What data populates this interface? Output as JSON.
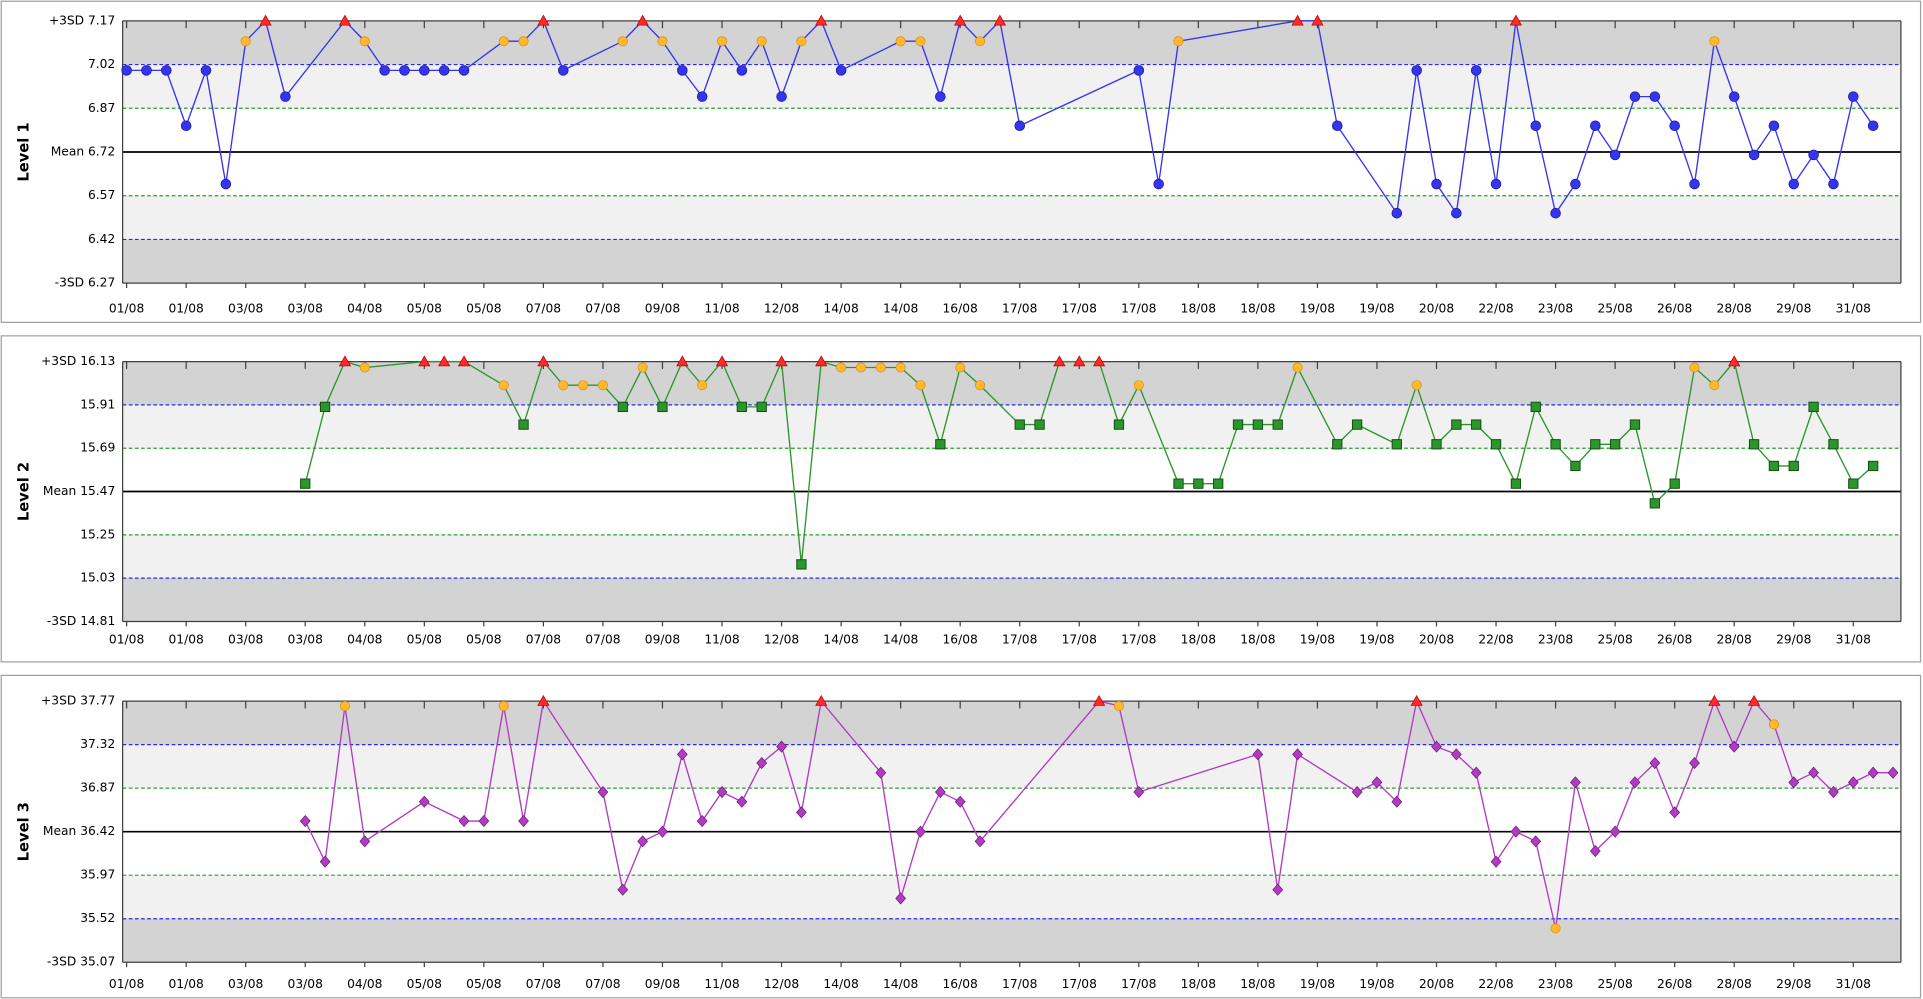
{
  "chart_data": [
    {
      "type": "line",
      "ylabel": "Level 1",
      "color": "#3535f0",
      "marker": "circle",
      "xlim": [
        -0.2,
        89.4
      ],
      "ylim": [
        6.27,
        7.17
      ],
      "yticks": [
        {
          "value": 7.17,
          "label": "+3SD 7.17"
        },
        7.02,
        6.87,
        {
          "value": 6.72,
          "label": "Mean 6.72"
        },
        6.57,
        6.42,
        {
          "value": 6.27,
          "label": "-3SD 6.27"
        }
      ],
      "xticks": [
        {
          "value": 0,
          "label": "01/08"
        },
        {
          "value": 3,
          "label": "01/08"
        },
        {
          "value": 6,
          "label": "03/08"
        },
        {
          "value": 9,
          "label": "03/08"
        },
        {
          "value": 12,
          "label": "04/08"
        },
        {
          "value": 15,
          "label": "05/08"
        },
        {
          "value": 18,
          "label": "05/08"
        },
        {
          "value": 21,
          "label": "07/08"
        },
        {
          "value": 24,
          "label": "07/08"
        },
        {
          "value": 27,
          "label": "09/08"
        },
        {
          "value": 30,
          "label": "11/08"
        },
        {
          "value": 33,
          "label": "12/08"
        },
        {
          "value": 36,
          "label": "14/08"
        },
        {
          "value": 39,
          "label": "14/08"
        },
        {
          "value": 42,
          "label": "16/08"
        },
        {
          "value": 45,
          "label": "17/08"
        },
        {
          "value": 48,
          "label": "17/08"
        },
        {
          "value": 51,
          "label": "17/08"
        },
        {
          "value": 54,
          "label": "18/08"
        },
        {
          "value": 57,
          "label": "18/08"
        },
        {
          "value": 60,
          "label": "19/08"
        },
        {
          "value": 63,
          "label": "19/08"
        },
        {
          "value": 66,
          "label": "20/08"
        },
        {
          "value": 69,
          "label": "22/08"
        },
        {
          "value": 72,
          "label": "23/08"
        },
        {
          "value": 75,
          "label": "25/08"
        },
        {
          "value": 78,
          "label": "26/08"
        },
        {
          "value": 81,
          "label": "28/08"
        },
        {
          "value": 84,
          "label": "29/08"
        },
        {
          "value": 87,
          "label": "31/08"
        }
      ],
      "x": [
        0,
        1,
        2,
        3,
        4,
        5,
        6,
        7,
        8,
        11,
        12,
        13,
        14,
        15,
        16,
        17,
        19,
        20,
        21,
        22,
        25,
        26,
        27,
        28,
        29,
        30,
        31,
        32,
        33,
        34,
        35,
        36,
        39,
        40,
        41,
        42,
        43,
        44,
        45,
        51,
        52,
        53,
        59,
        60,
        61,
        64,
        65,
        66,
        67,
        68,
        69,
        70,
        71,
        72,
        73,
        74,
        75,
        76,
        77,
        78,
        79,
        80,
        81,
        82,
        83,
        84,
        85,
        86,
        87,
        88
      ],
      "values": [
        7.0,
        7.0,
        7.0,
        6.81,
        7.0,
        6.61,
        7.1,
        7.17,
        6.91,
        7.17,
        7.1,
        7.0,
        7.0,
        7.0,
        7.0,
        7.0,
        7.1,
        7.1,
        7.17,
        7.0,
        7.1,
        7.17,
        7.1,
        7.0,
        6.91,
        7.1,
        7.0,
        7.1,
        6.91,
        7.1,
        7.17,
        7.0,
        7.1,
        7.1,
        6.91,
        7.17,
        7.1,
        7.17,
        6.81,
        7.0,
        6.61,
        7.1,
        7.17,
        7.17,
        6.81,
        6.51,
        7.0,
        6.61,
        6.51,
        7.0,
        6.61,
        7.17,
        6.81,
        6.51,
        6.61,
        6.81,
        6.71,
        6.91,
        6.91,
        6.81,
        6.61,
        7.1,
        6.91,
        6.71,
        6.81,
        6.61,
        6.71,
        6.61,
        6.91,
        6.81
      ]
    },
    {
      "type": "line",
      "ylabel": "Level 2",
      "color": "#2c962c",
      "marker": "square",
      "xlim": [
        -0.2,
        89.4
      ],
      "ylim": [
        14.81,
        16.13
      ],
      "yticks": [
        {
          "value": 16.13,
          "label": "+3SD 16.13"
        },
        15.91,
        15.69,
        {
          "value": 15.47,
          "label": "Mean 15.47"
        },
        15.25,
        15.03,
        {
          "value": 14.81,
          "label": "-3SD 14.81"
        }
      ],
      "xticks": [
        {
          "value": 0,
          "label": "01/08"
        },
        {
          "value": 3,
          "label": "01/08"
        },
        {
          "value": 6,
          "label": "03/08"
        },
        {
          "value": 9,
          "label": "03/08"
        },
        {
          "value": 12,
          "label": "04/08"
        },
        {
          "value": 15,
          "label": "05/08"
        },
        {
          "value": 18,
          "label": "05/08"
        },
        {
          "value": 21,
          "label": "07/08"
        },
        {
          "value": 24,
          "label": "07/08"
        },
        {
          "value": 27,
          "label": "09/08"
        },
        {
          "value": 30,
          "label": "11/08"
        },
        {
          "value": 33,
          "label": "12/08"
        },
        {
          "value": 36,
          "label": "14/08"
        },
        {
          "value": 39,
          "label": "14/08"
        },
        {
          "value": 42,
          "label": "16/08"
        },
        {
          "value": 45,
          "label": "17/08"
        },
        {
          "value": 48,
          "label": "17/08"
        },
        {
          "value": 51,
          "label": "17/08"
        },
        {
          "value": 54,
          "label": "18/08"
        },
        {
          "value": 57,
          "label": "18/08"
        },
        {
          "value": 60,
          "label": "19/08"
        },
        {
          "value": 63,
          "label": "19/08"
        },
        {
          "value": 66,
          "label": "20/08"
        },
        {
          "value": 69,
          "label": "22/08"
        },
        {
          "value": 72,
          "label": "23/08"
        },
        {
          "value": 75,
          "label": "25/08"
        },
        {
          "value": 78,
          "label": "26/08"
        },
        {
          "value": 81,
          "label": "28/08"
        },
        {
          "value": 84,
          "label": "29/08"
        },
        {
          "value": 87,
          "label": "31/08"
        }
      ],
      "x": [
        9,
        10,
        11,
        12,
        15,
        16,
        17,
        19,
        20,
        21,
        22,
        23,
        24,
        25,
        26,
        27,
        28,
        29,
        30,
        31,
        32,
        33,
        34,
        35,
        36,
        37,
        38,
        39,
        40,
        41,
        42,
        43,
        45,
        46,
        47,
        48,
        49,
        50,
        51,
        53,
        54,
        55,
        56,
        57,
        58,
        59,
        61,
        62,
        64,
        65,
        66,
        67,
        68,
        69,
        70,
        71,
        72,
        73,
        74,
        75,
        76,
        77,
        78,
        79,
        80,
        81,
        82,
        83,
        84,
        85,
        86,
        87,
        88
      ],
      "values": [
        15.51,
        15.9,
        16.13,
        16.1,
        16.13,
        16.13,
        16.13,
        16.01,
        15.81,
        16.13,
        16.01,
        16.01,
        16.01,
        15.9,
        16.1,
        15.9,
        16.13,
        16.01,
        16.13,
        15.9,
        15.9,
        16.13,
        15.1,
        16.13,
        16.1,
        16.1,
        16.1,
        16.1,
        16.01,
        15.71,
        16.1,
        16.01,
        15.81,
        15.81,
        16.13,
        16.13,
        16.13,
        15.81,
        16.01,
        15.51,
        15.51,
        15.51,
        15.81,
        15.81,
        15.81,
        16.1,
        15.71,
        15.81,
        15.71,
        16.01,
        15.71,
        15.81,
        15.81,
        15.71,
        15.51,
        15.9,
        15.71,
        15.6,
        15.71,
        15.71,
        15.81,
        15.41,
        15.51,
        16.1,
        16.01,
        16.13,
        15.71,
        15.6,
        15.6,
        15.9,
        15.71,
        15.51,
        15.6
      ]
    },
    {
      "type": "line",
      "ylabel": "Level 3",
      "color": "#b03cc0",
      "marker": "diamond",
      "xlim": [
        -0.2,
        89.4
      ],
      "ylim": [
        35.07,
        37.77
      ],
      "yticks": [
        {
          "value": 37.77,
          "label": "+3SD 37.77"
        },
        37.32,
        36.87,
        {
          "value": 36.42,
          "label": "Mean 36.42"
        },
        35.97,
        35.52,
        {
          "value": 35.07,
          "label": "-3SD 35.07"
        }
      ],
      "xticks": [
        {
          "value": 0,
          "label": "01/08"
        },
        {
          "value": 3,
          "label": "01/08"
        },
        {
          "value": 6,
          "label": "03/08"
        },
        {
          "value": 9,
          "label": "03/08"
        },
        {
          "value": 12,
          "label": "04/08"
        },
        {
          "value": 15,
          "label": "05/08"
        },
        {
          "value": 18,
          "label": "05/08"
        },
        {
          "value": 21,
          "label": "07/08"
        },
        {
          "value": 24,
          "label": "07/08"
        },
        {
          "value": 27,
          "label": "09/08"
        },
        {
          "value": 30,
          "label": "11/08"
        },
        {
          "value": 33,
          "label": "12/08"
        },
        {
          "value": 36,
          "label": "14/08"
        },
        {
          "value": 39,
          "label": "14/08"
        },
        {
          "value": 42,
          "label": "16/08"
        },
        {
          "value": 45,
          "label": "17/08"
        },
        {
          "value": 48,
          "label": "17/08"
        },
        {
          "value": 51,
          "label": "17/08"
        },
        {
          "value": 54,
          "label": "18/08"
        },
        {
          "value": 57,
          "label": "18/08"
        },
        {
          "value": 60,
          "label": "19/08"
        },
        {
          "value": 63,
          "label": "19/08"
        },
        {
          "value": 66,
          "label": "20/08"
        },
        {
          "value": 69,
          "label": "22/08"
        },
        {
          "value": 72,
          "label": "23/08"
        },
        {
          "value": 75,
          "label": "25/08"
        },
        {
          "value": 78,
          "label": "26/08"
        },
        {
          "value": 81,
          "label": "28/08"
        },
        {
          "value": 84,
          "label": "29/08"
        },
        {
          "value": 87,
          "label": "31/08"
        }
      ],
      "x": [
        9,
        10,
        11,
        12,
        15,
        17,
        18,
        19,
        20,
        21,
        24,
        25,
        26,
        27,
        28,
        29,
        30,
        31,
        32,
        33,
        34,
        35,
        38,
        39,
        40,
        41,
        42,
        43,
        49,
        50,
        51,
        57,
        58,
        59,
        62,
        63,
        64,
        65,
        66,
        67,
        68,
        69,
        70,
        71,
        72,
        73,
        74,
        75,
        76,
        77,
        78,
        79,
        80,
        81,
        82,
        83,
        84,
        85,
        86,
        87,
        88,
        89
      ],
      "values": [
        36.53,
        36.11,
        37.72,
        36.32,
        36.73,
        36.53,
        36.53,
        37.72,
        36.53,
        37.77,
        36.83,
        35.82,
        36.32,
        36.42,
        37.22,
        36.53,
        36.83,
        36.73,
        37.13,
        37.3,
        36.62,
        37.77,
        37.03,
        35.73,
        36.42,
        36.83,
        36.73,
        36.32,
        37.77,
        37.72,
        36.83,
        37.22,
        35.82,
        37.22,
        36.83,
        36.93,
        36.73,
        37.77,
        37.3,
        37.22,
        37.03,
        36.11,
        36.42,
        36.32,
        35.42,
        36.93,
        36.22,
        36.42,
        36.93,
        37.13,
        36.62,
        37.13,
        37.77,
        37.3,
        37.77,
        37.53,
        36.93,
        37.03,
        36.83,
        36.93,
        37.03,
        37.03
      ]
    }
  ]
}
